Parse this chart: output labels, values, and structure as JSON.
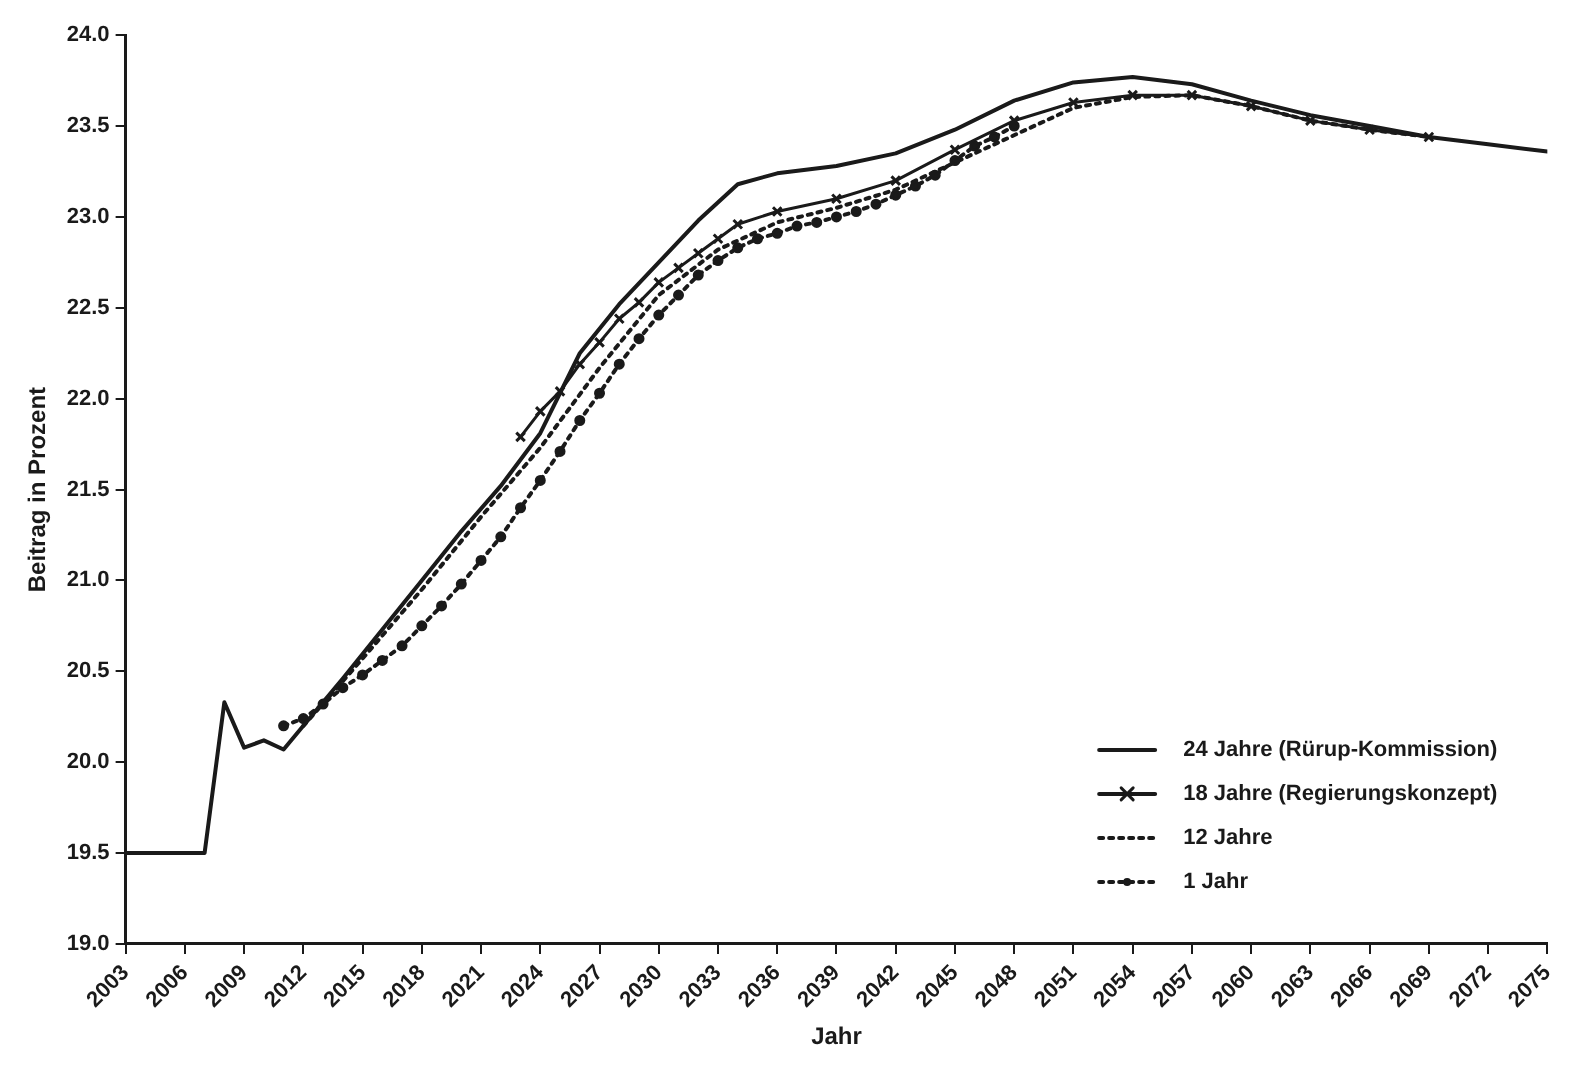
{
  "chart_data": {
    "type": "line",
    "xlabel": "Jahr",
    "ylabel": "Beitrag in Prozent",
    "xlim": [
      2003,
      2075
    ],
    "xticks": [
      2003,
      2006,
      2009,
      2012,
      2015,
      2018,
      2021,
      2024,
      2027,
      2030,
      2033,
      2036,
      2039,
      2042,
      2045,
      2048,
      2051,
      2054,
      2057,
      2060,
      2063,
      2066,
      2069,
      2072,
      2075
    ],
    "ylim": [
      19,
      24
    ],
    "yticks": [
      {
        "value": 19,
        "label": "19.0"
      },
      {
        "value": 19.5,
        "label": "19.5"
      },
      {
        "value": 20,
        "label": "20.0"
      },
      {
        "value": 20.5,
        "label": "20.5"
      },
      {
        "value": 21,
        "label": "21.0"
      },
      {
        "value": 21.5,
        "label": "21.5"
      },
      {
        "value": 22,
        "label": "22.0"
      },
      {
        "value": 22.5,
        "label": "22.5"
      },
      {
        "value": 23,
        "label": "23.0"
      },
      {
        "value": 23.5,
        "label": "23.5"
      },
      {
        "value": 24,
        "label": "24.0"
      }
    ],
    "grid": false,
    "legend": "bottom right",
    "series": [
      {
        "name": "24 Jahre (Rürup-Kommission)",
        "color": "#1a1a1a",
        "line_style": "solid",
        "marker": "none",
        "x": [
          2003,
          2007,
          2008,
          2009,
          2010,
          2011,
          2012,
          2014,
          2016,
          2018,
          2020,
          2022,
          2024,
          2026,
          2028,
          2030,
          2032,
          2034,
          2036,
          2039,
          2042,
          2045,
          2048,
          2051,
          2054,
          2057,
          2060,
          2063,
          2066,
          2069,
          2072,
          2075
        ],
        "values": [
          19.5,
          19.5,
          20.33,
          20.08,
          20.12,
          20.07,
          20.2,
          20.46,
          20.73,
          21.0,
          21.27,
          21.52,
          21.81,
          22.25,
          22.52,
          22.75,
          22.98,
          23.18,
          23.24,
          23.28,
          23.35,
          23.48,
          23.64,
          23.74,
          23.77,
          23.73,
          23.64,
          23.56,
          23.5,
          23.44,
          23.4,
          23.36
        ]
      },
      {
        "name": "18 Jahre (Regierungskonzept)",
        "color": "#1a1a1a",
        "line_style": "solid",
        "marker": "cross",
        "x": [
          2023,
          2024,
          2025,
          2026,
          2027,
          2028,
          2029,
          2030,
          2031,
          2032,
          2033,
          2034,
          2036,
          2039,
          2042,
          2045,
          2048,
          2051,
          2054,
          2057,
          2060,
          2063,
          2066,
          2069
        ],
        "values": [
          21.79,
          21.93,
          22.04,
          22.19,
          22.31,
          22.44,
          22.53,
          22.64,
          22.72,
          22.8,
          22.88,
          22.96,
          23.03,
          23.1,
          23.2,
          23.37,
          23.53,
          23.63,
          23.67,
          23.67,
          23.61,
          23.53,
          23.48,
          23.44
        ]
      },
      {
        "name": "12 Jahre",
        "color": "#1a1a1a",
        "line_style": "dotted",
        "marker": "none",
        "x": [
          2012,
          2015,
          2018,
          2021,
          2024,
          2027,
          2030,
          2033,
          2036,
          2039,
          2042,
          2045,
          2051,
          2054,
          2057,
          2060,
          2063,
          2066,
          2069
        ],
        "values": [
          20.2,
          20.57,
          20.95,
          21.35,
          21.73,
          22.17,
          22.57,
          22.82,
          22.97,
          23.05,
          23.15,
          23.3,
          23.6,
          23.66,
          23.67,
          23.61,
          23.53,
          23.48,
          23.44
        ]
      },
      {
        "name": "1 Jahr",
        "color": "#1a1a1a",
        "line_style": "dotted",
        "marker": "circle",
        "x": [
          2011,
          2012,
          2013,
          2014,
          2015,
          2016,
          2017,
          2018,
          2019,
          2020,
          2021,
          2022,
          2023,
          2024,
          2025,
          2026,
          2027,
          2028,
          2029,
          2030,
          2031,
          2032,
          2033,
          2034,
          2035,
          2036,
          2037,
          2038,
          2039,
          2040,
          2041,
          2042,
          2043,
          2044,
          2045,
          2046,
          2047,
          2048
        ],
        "values": [
          20.2,
          20.24,
          20.32,
          20.41,
          20.48,
          20.56,
          20.64,
          20.75,
          20.86,
          20.98,
          21.11,
          21.24,
          21.4,
          21.55,
          21.71,
          21.88,
          22.03,
          22.19,
          22.33,
          22.46,
          22.57,
          22.68,
          22.76,
          22.83,
          22.88,
          22.91,
          22.95,
          22.97,
          23.0,
          23.03,
          23.07,
          23.12,
          23.17,
          23.23,
          23.31,
          23.39,
          23.44,
          23.5
        ]
      }
    ]
  }
}
